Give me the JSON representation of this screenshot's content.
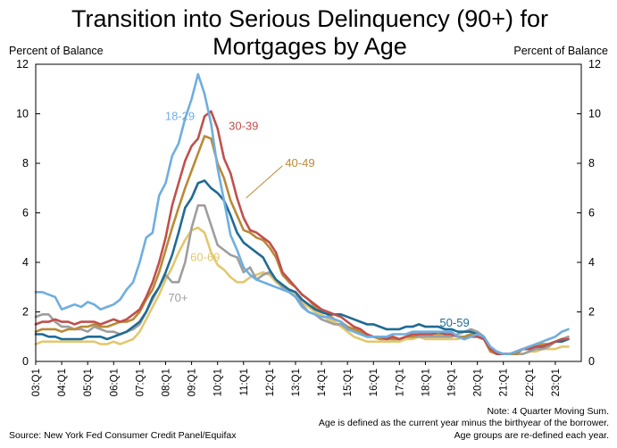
{
  "chart_data": {
    "type": "line",
    "title_lines": [
      "Transition into Serious Delinquency (90+) for",
      "Mortgages by Age"
    ],
    "ylabel_left": "Percent of Balance",
    "ylabel_right": "Percent of Balance",
    "ylim": [
      0,
      12
    ],
    "yticks": [
      0,
      2,
      4,
      6,
      8,
      10,
      12
    ],
    "ytick_labels": [
      "0",
      "2",
      "4",
      "6",
      "8",
      "10",
      "12"
    ],
    "x_start": "2003 Q1",
    "x_range": [
      2003.0,
      2024.0
    ],
    "xticks": [
      2003,
      2004,
      2005,
      2006,
      2007,
      2008,
      2009,
      2010,
      2011,
      2012,
      2013,
      2014,
      2015,
      2016,
      2017,
      2018,
      2019,
      2020,
      2021,
      2022,
      2023
    ],
    "xtick_labels": [
      "03:Q1",
      "04:Q1",
      "05:Q1",
      "06:Q1",
      "07:Q1",
      "08:Q1",
      "09:Q1",
      "10:Q1",
      "11:Q1",
      "12:Q1",
      "13:Q1",
      "14:Q1",
      "15:Q1",
      "16:Q1",
      "17:Q1",
      "18:Q1",
      "19:Q1",
      "20:Q1",
      "21:Q1",
      "22:Q1",
      "23:Q1"
    ],
    "grid": false,
    "legend": "inline labels",
    "series": [
      {
        "name": "18-29",
        "color": "#6FAEE0",
        "values": [
          2.8,
          2.8,
          2.7,
          2.6,
          2.1,
          2.2,
          2.3,
          2.2,
          2.4,
          2.3,
          2.1,
          2.2,
          2.3,
          2.5,
          2.9,
          3.2,
          4.0,
          5.0,
          5.2,
          6.7,
          7.2,
          8.3,
          8.8,
          9.8,
          10.6,
          11.6,
          10.8,
          9.6,
          7.8,
          6.5,
          5.1,
          4.5,
          3.8,
          3.5,
          3.3,
          3.2,
          3.1,
          3.0,
          2.9,
          2.8,
          2.6,
          2.2,
          2.0,
          1.9,
          1.8,
          1.8,
          1.7,
          1.6,
          1.3,
          1.2,
          1.1,
          1.0,
          1.0,
          1.0,
          1.0,
          1.1,
          1.1,
          1.1,
          1.2,
          1.2,
          1.2,
          1.2,
          1.2,
          1.2,
          1.2,
          1.0,
          0.9,
          1.0,
          1.1,
          1.0,
          0.6,
          0.4,
          0.3,
          0.3,
          0.4,
          0.5,
          0.6,
          0.7,
          0.8,
          0.9,
          1.0,
          1.2,
          1.3
        ]
      },
      {
        "name": "30-39",
        "color": "#C0504D",
        "values": [
          1.5,
          1.6,
          1.6,
          1.7,
          1.6,
          1.6,
          1.5,
          1.6,
          1.6,
          1.6,
          1.5,
          1.6,
          1.7,
          1.6,
          1.7,
          1.9,
          2.1,
          2.6,
          3.2,
          4.0,
          5.0,
          6.3,
          7.2,
          8.1,
          8.7,
          9.0,
          9.9,
          10.1,
          9.4,
          8.2,
          7.6,
          6.6,
          5.8,
          5.3,
          5.2,
          5.0,
          4.8,
          4.4,
          3.6,
          3.3,
          3.0,
          2.7,
          2.5,
          2.3,
          2.1,
          2.0,
          1.9,
          1.8,
          1.6,
          1.4,
          1.3,
          1.1,
          1.0,
          1.0,
          0.9,
          1.0,
          0.9,
          1.0,
          1.1,
          1.1,
          1.1,
          1.1,
          1.2,
          1.1,
          1.1,
          1.0,
          0.9,
          1.0,
          1.0,
          0.9,
          0.5,
          0.3,
          0.3,
          0.3,
          0.4,
          0.5,
          0.5,
          0.6,
          0.6,
          0.7,
          0.8,
          0.9,
          0.9
        ]
      },
      {
        "name": "40-49",
        "color": "#BA8A36",
        "values": [
          1.2,
          1.3,
          1.3,
          1.3,
          1.2,
          1.3,
          1.3,
          1.4,
          1.4,
          1.5,
          1.4,
          1.4,
          1.5,
          1.6,
          1.6,
          1.7,
          2.0,
          2.5,
          2.9,
          3.6,
          4.5,
          5.4,
          6.2,
          7.0,
          7.7,
          8.4,
          9.1,
          9.0,
          8.0,
          7.4,
          6.5,
          5.9,
          5.3,
          5.2,
          5.0,
          4.9,
          4.6,
          4.2,
          3.5,
          3.2,
          3.0,
          2.7,
          2.5,
          2.2,
          2.0,
          1.9,
          1.7,
          1.6,
          1.4,
          1.3,
          1.2,
          1.0,
          1.0,
          0.9,
          0.9,
          0.9,
          0.9,
          1.0,
          1.0,
          1.1,
          1.1,
          1.1,
          1.1,
          1.1,
          1.1,
          1.0,
          1.0,
          1.1,
          1.0,
          0.9,
          0.4,
          0.3,
          0.3,
          0.3,
          0.3,
          0.5,
          0.6,
          0.6,
          0.7,
          0.7,
          0.8,
          0.9,
          0.9
        ]
      },
      {
        "name": "50-59",
        "color": "#1F6B94",
        "values": [
          1.1,
          1.1,
          1.0,
          1.0,
          0.9,
          0.9,
          0.9,
          0.9,
          1.0,
          1.0,
          1.0,
          0.9,
          1.0,
          1.1,
          1.2,
          1.4,
          1.6,
          2.0,
          2.6,
          3.0,
          3.6,
          4.3,
          5.2,
          6.2,
          6.6,
          7.2,
          7.3,
          7.0,
          6.8,
          6.5,
          5.9,
          5.2,
          4.8,
          4.6,
          4.4,
          4.2,
          3.7,
          3.3,
          3.1,
          2.9,
          2.8,
          2.5,
          2.3,
          2.1,
          2.0,
          1.9,
          1.9,
          1.9,
          1.8,
          1.7,
          1.6,
          1.5,
          1.5,
          1.4,
          1.3,
          1.3,
          1.3,
          1.4,
          1.4,
          1.5,
          1.4,
          1.4,
          1.4,
          1.3,
          1.3,
          1.2,
          1.2,
          1.2,
          1.1,
          1.0,
          0.5,
          0.4,
          0.3,
          0.3,
          0.4,
          0.5,
          0.5,
          0.6,
          0.6,
          0.7,
          0.8,
          0.8,
          0.9
        ]
      },
      {
        "name": "60-69",
        "color": "#E3C76F",
        "values": [
          0.7,
          0.8,
          0.8,
          0.8,
          0.8,
          0.8,
          0.8,
          0.8,
          0.8,
          0.8,
          0.7,
          0.7,
          0.8,
          0.7,
          0.8,
          0.9,
          1.2,
          1.7,
          2.2,
          2.7,
          3.3,
          3.8,
          4.4,
          4.9,
          5.3,
          5.4,
          5.2,
          4.4,
          3.9,
          3.7,
          3.4,
          3.2,
          3.2,
          3.4,
          3.5,
          3.6,
          3.5,
          3.2,
          3.0,
          2.9,
          2.7,
          2.4,
          2.2,
          2.0,
          1.9,
          1.7,
          1.6,
          1.4,
          1.2,
          1.0,
          0.9,
          0.8,
          0.8,
          0.8,
          0.8,
          0.8,
          0.8,
          0.9,
          0.9,
          1.0,
          0.9,
          0.9,
          0.9,
          0.9,
          0.9,
          0.9,
          1.0,
          1.1,
          1.0,
          0.9,
          0.4,
          0.3,
          0.3,
          0.3,
          0.3,
          0.3,
          0.4,
          0.4,
          0.5,
          0.5,
          0.5,
          0.6,
          0.6
        ]
      },
      {
        "name": "70+",
        "color": "#9E9E9E",
        "values": [
          1.8,
          1.9,
          1.9,
          1.6,
          1.4,
          1.4,
          1.3,
          1.3,
          1.2,
          1.4,
          1.3,
          1.2,
          1.2,
          1.1,
          1.2,
          1.3,
          1.5,
          2.0,
          2.5,
          3.0,
          3.5,
          3.2,
          3.2,
          4.0,
          5.4,
          6.3,
          6.3,
          5.5,
          4.7,
          4.5,
          4.3,
          4.2,
          3.6,
          3.8,
          3.3,
          3.5,
          3.6,
          3.3,
          3.0,
          2.9,
          2.8,
          2.3,
          2.0,
          1.9,
          1.7,
          1.6,
          1.5,
          1.5,
          1.3,
          1.2,
          1.1,
          1.0,
          1.0,
          1.0,
          1.0,
          0.9,
          0.9,
          1.0,
          1.0,
          1.0,
          1.0,
          1.0,
          1.0,
          1.0,
          1.0,
          1.1,
          1.2,
          1.3,
          1.2,
          1.0,
          0.5,
          0.3,
          0.3,
          0.3,
          0.3,
          0.3,
          0.4,
          0.5,
          0.5,
          0.6,
          0.8,
          0.9,
          1.0
        ]
      }
    ],
    "inline_labels": [
      "18-29",
      "30-39",
      "40-49",
      "50-59",
      "60-69",
      "70+"
    ],
    "annotations": [
      "Note: 4 Quarter Moving Sum.",
      "Age is defined as the current year minus the birthyear of the borrower.",
      "Age groups are re-defined each year."
    ],
    "source": "Source: New York Fed Consumer Credit Panel/Equifax"
  }
}
